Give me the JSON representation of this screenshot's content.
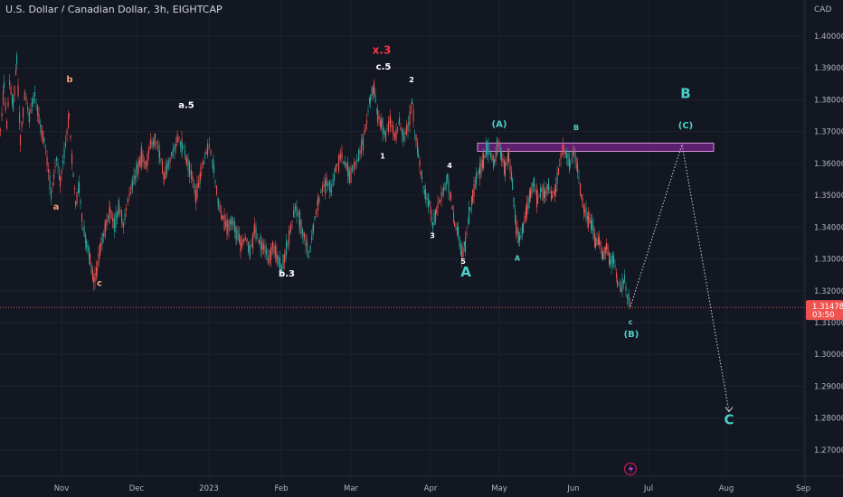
{
  "title": "U.S. Dollar / Canadian Dollar, 3h, EIGHTCAP",
  "currency": "CAD",
  "price_label": {
    "value": "1.31478",
    "timer": "03:50"
  },
  "colors": {
    "bg": "#131722",
    "up": "#26a69a",
    "down": "#ef5350",
    "axis_text": "#b2b5be",
    "grid": "#1e222d",
    "zone": "#9c27b0",
    "label_teal": "#4dd0c8",
    "label_red": "#f23645",
    "label_orange": "#f7a17b",
    "label_white": "#ffffff"
  },
  "chart_data": {
    "type": "line",
    "title": "U.S. Dollar / Canadian Dollar, 3h, EIGHTCAP",
    "y_ticks": [
      "1.40000",
      "1.39000",
      "1.38000",
      "1.37000",
      "1.36000",
      "1.35000",
      "1.34000",
      "1.33000",
      "1.32000",
      "1.31000",
      "1.30000",
      "1.29000",
      "1.28000",
      "1.27000"
    ],
    "x_ticks": [
      "Nov",
      "Dec",
      "2023",
      "Feb",
      "Mar",
      "Apr",
      "May",
      "Jun",
      "Jul",
      "Aug",
      "Sep"
    ],
    "ylim": [
      1.264,
      1.414
    ],
    "series": [
      {
        "values": [
          [
            0,
            1.37
          ],
          [
            4,
            1.385
          ],
          [
            7,
            1.372
          ],
          [
            10,
            1.385
          ],
          [
            14,
            1.378
          ],
          [
            18,
            1.392
          ],
          [
            22,
            1.368
          ],
          [
            27,
            1.382
          ],
          [
            32,
            1.375
          ],
          [
            38,
            1.382
          ],
          [
            44,
            1.372
          ],
          [
            50,
            1.365
          ],
          [
            56,
            1.35
          ],
          [
            62,
            1.362
          ],
          [
            66,
            1.355
          ],
          [
            72,
            1.366
          ],
          [
            76,
            1.376
          ],
          [
            79,
            1.362
          ],
          [
            83,
            1.348
          ],
          [
            87,
            1.352
          ],
          [
            91,
            1.34
          ],
          [
            95,
            1.335
          ],
          [
            99,
            1.33
          ],
          [
            103,
            1.323
          ],
          [
            107,
            1.327
          ],
          [
            111,
            1.335
          ],
          [
            116,
            1.34
          ],
          [
            121,
            1.345
          ],
          [
            126,
            1.34
          ],
          [
            131,
            1.346
          ],
          [
            136,
            1.341
          ],
          [
            141,
            1.348
          ],
          [
            146,
            1.353
          ],
          [
            151,
            1.358
          ],
          [
            156,
            1.362
          ],
          [
            161,
            1.36
          ],
          [
            166,
            1.366
          ],
          [
            171,
            1.368
          ],
          [
            176,
            1.363
          ],
          [
            181,
            1.356
          ],
          [
            186,
            1.36
          ],
          [
            191,
            1.364
          ],
          [
            196,
            1.368
          ],
          [
            201,
            1.366
          ],
          [
            206,
            1.361
          ],
          [
            211,
            1.357
          ],
          [
            216,
            1.35
          ],
          [
            221,
            1.356
          ],
          [
            226,
            1.362
          ],
          [
            231,
            1.366
          ],
          [
            236,
            1.358
          ],
          [
            241,
            1.347
          ],
          [
            246,
            1.343
          ],
          [
            251,
            1.34
          ],
          [
            256,
            1.342
          ],
          [
            261,
            1.338
          ],
          [
            266,
            1.335
          ],
          [
            271,
            1.337
          ],
          [
            276,
            1.332
          ],
          [
            281,
            1.339
          ],
          [
            286,
            1.335
          ],
          [
            291,
            1.334
          ],
          [
            296,
            1.33
          ],
          [
            301,
            1.334
          ],
          [
            306,
            1.33
          ],
          [
            311,
            1.327
          ],
          [
            316,
            1.333
          ],
          [
            321,
            1.34
          ],
          [
            326,
            1.346
          ],
          [
            331,
            1.342
          ],
          [
            336,
            1.337
          ],
          [
            341,
            1.331
          ],
          [
            346,
            1.34
          ],
          [
            351,
            1.348
          ],
          [
            356,
            1.352
          ],
          [
            361,
            1.354
          ],
          [
            366,
            1.352
          ],
          [
            371,
            1.358
          ],
          [
            376,
            1.363
          ],
          [
            381,
            1.36
          ],
          [
            386,
            1.356
          ],
          [
            391,
            1.359
          ],
          [
            396,
            1.362
          ],
          [
            401,
            1.367
          ],
          [
            405,
            1.373
          ],
          [
            409,
            1.381
          ],
          [
            413,
            1.384
          ],
          [
            417,
            1.375
          ],
          [
            421,
            1.372
          ],
          [
            426,
            1.369
          ],
          [
            431,
            1.374
          ],
          [
            436,
            1.368
          ],
          [
            441,
            1.373
          ],
          [
            446,
            1.368
          ],
          [
            451,
            1.372
          ],
          [
            455,
            1.38
          ],
          [
            458,
            1.37
          ],
          [
            462,
            1.363
          ],
          [
            466,
            1.355
          ],
          [
            470,
            1.35
          ],
          [
            474,
            1.347
          ],
          [
            478,
            1.341
          ],
          [
            482,
            1.345
          ],
          [
            486,
            1.348
          ],
          [
            490,
            1.352
          ],
          [
            494,
            1.355
          ],
          [
            498,
            1.349
          ],
          [
            502,
            1.341
          ],
          [
            506,
            1.338
          ],
          [
            510,
            1.331
          ],
          [
            514,
            1.335
          ],
          [
            518,
            1.343
          ],
          [
            522,
            1.35
          ],
          [
            526,
            1.355
          ],
          [
            530,
            1.358
          ],
          [
            534,
            1.36
          ],
          [
            538,
            1.365
          ],
          [
            542,
            1.362
          ],
          [
            546,
            1.36
          ],
          [
            550,
            1.366
          ],
          [
            554,
            1.362
          ],
          [
            558,
            1.358
          ],
          [
            562,
            1.363
          ],
          [
            566,
            1.353
          ],
          [
            570,
            1.34
          ],
          [
            574,
            1.336
          ],
          [
            578,
            1.34
          ],
          [
            582,
            1.346
          ],
          [
            586,
            1.35
          ],
          [
            590,
            1.354
          ],
          [
            594,
            1.348
          ],
          [
            598,
            1.352
          ],
          [
            602,
            1.351
          ],
          [
            606,
            1.353
          ],
          [
            610,
            1.349
          ],
          [
            614,
            1.352
          ],
          [
            618,
            1.36
          ],
          [
            622,
            1.365
          ],
          [
            626,
            1.362
          ],
          [
            630,
            1.359
          ],
          [
            634,
            1.364
          ],
          [
            638,
            1.358
          ],
          [
            642,
            1.35
          ],
          [
            646,
            1.345
          ],
          [
            650,
            1.343
          ],
          [
            654,
            1.34
          ],
          [
            658,
            1.335
          ],
          [
            662,
            1.336
          ],
          [
            666,
            1.331
          ],
          [
            670,
            1.334
          ],
          [
            674,
            1.329
          ],
          [
            678,
            1.33
          ],
          [
            682,
            1.323
          ],
          [
            686,
            1.32
          ],
          [
            690,
            1.324
          ],
          [
            693,
            1.318
          ],
          [
            697,
            1.315
          ]
        ]
      }
    ],
    "projection": [
      [
        697,
        1.315
      ],
      [
        754,
        1.366
      ],
      [
        806,
        1.282
      ]
    ],
    "resistance_zone": {
      "x_start": 528,
      "x_end": 789,
      "y_low": 1.3638,
      "y_high": 1.3664
    },
    "current_price": 1.31478,
    "wave_labels": [
      {
        "text": "a",
        "x": 62,
        "y": 1.3455,
        "color": "orange",
        "size": "small"
      },
      {
        "text": "b",
        "x": 77,
        "y": 1.3855,
        "color": "orange",
        "size": "small"
      },
      {
        "text": "c",
        "x": 110,
        "y": 1.3215,
        "color": "orange",
        "size": "small"
      },
      {
        "text": "a.5",
        "x": 206,
        "y": 1.3775,
        "color": "white",
        "size": "small"
      },
      {
        "text": "b.3",
        "x": 317,
        "y": 1.3245,
        "color": "white",
        "size": "small"
      },
      {
        "text": "x.3",
        "x": 422,
        "y": 1.3945,
        "color": "red",
        "size": "medium"
      },
      {
        "text": "c.5",
        "x": 424,
        "y": 1.3895,
        "color": "white",
        "size": "small"
      },
      {
        "text": "2",
        "x": 455,
        "y": 1.3855,
        "color": "white",
        "size": "tiny"
      },
      {
        "text": "1",
        "x": 423,
        "y": 1.3615,
        "color": "white",
        "size": "tiny"
      },
      {
        "text": "4",
        "x": 497,
        "y": 1.3585,
        "color": "white",
        "size": "tiny"
      },
      {
        "text": "3",
        "x": 478,
        "y": 1.3365,
        "color": "white",
        "size": "tiny"
      },
      {
        "text": "5",
        "x": 512,
        "y": 1.3285,
        "color": "white",
        "size": "tiny"
      },
      {
        "text": "A",
        "x": 515,
        "y": 1.3245,
        "color": "teal",
        "size": "large"
      },
      {
        "text": "(A)",
        "x": 552,
        "y": 1.3715,
        "color": "teal",
        "size": "small"
      },
      {
        "text": "A",
        "x": 572,
        "y": 1.3295,
        "color": "teal",
        "size": "tiny"
      },
      {
        "text": "B",
        "x": 637,
        "y": 1.3705,
        "color": "teal",
        "size": "tiny"
      },
      {
        "text": "c",
        "x": 697,
        "y": 1.3095,
        "color": "teal",
        "size": "tiny"
      },
      {
        "text": "(B)",
        "x": 698,
        "y": 1.3055,
        "color": "teal",
        "size": "small"
      },
      {
        "text": "B",
        "x": 758,
        "y": 1.3805,
        "color": "teal",
        "size": "large"
      },
      {
        "text": "(C)",
        "x": 758,
        "y": 1.371,
        "color": "teal",
        "size": "small"
      },
      {
        "text": "C",
        "x": 806,
        "y": 1.278,
        "color": "teal",
        "size": "large"
      }
    ]
  }
}
